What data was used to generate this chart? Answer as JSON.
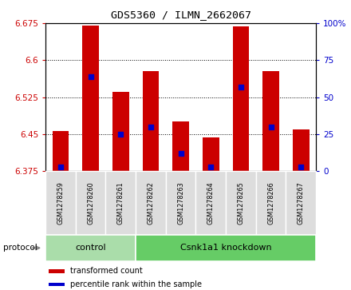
{
  "title": "GDS5360 / ILMN_2662067",
  "samples": [
    "GSM1278259",
    "GSM1278260",
    "GSM1278261",
    "GSM1278262",
    "GSM1278263",
    "GSM1278264",
    "GSM1278265",
    "GSM1278266",
    "GSM1278267"
  ],
  "transformed_count": [
    6.457,
    6.67,
    6.535,
    6.578,
    6.475,
    6.444,
    6.668,
    6.578,
    6.46
  ],
  "percentile_rank": [
    3,
    64,
    25,
    30,
    12,
    3,
    57,
    30,
    3
  ],
  "ylim_left": [
    6.375,
    6.675
  ],
  "ylim_right": [
    0,
    100
  ],
  "yticks_left": [
    6.375,
    6.45,
    6.525,
    6.6,
    6.675
  ],
  "ytick_labels_left": [
    "6.375",
    "6.45",
    "6.525",
    "6.6",
    "6.675"
  ],
  "yticks_right": [
    0,
    25,
    50,
    75,
    100
  ],
  "ytick_labels_right": [
    "0",
    "25",
    "50",
    "75",
    "100%"
  ],
  "bar_color": "#cc0000",
  "dot_color": "#0000cc",
  "base_value": 6.375,
  "groups": [
    {
      "label": "control",
      "start": 0,
      "end": 3
    },
    {
      "label": "Csnk1a1 knockdown",
      "start": 3,
      "end": 9
    }
  ],
  "group_colors": [
    "#aaddaa",
    "#66cc66"
  ],
  "protocol_label": "protocol",
  "legend_items": [
    {
      "label": "transformed count",
      "color": "#cc0000"
    },
    {
      "label": "percentile rank within the sample",
      "color": "#0000cc"
    }
  ],
  "bar_width": 0.55,
  "tick_label_color_left": "#cc0000",
  "tick_label_color_right": "#0000cc"
}
